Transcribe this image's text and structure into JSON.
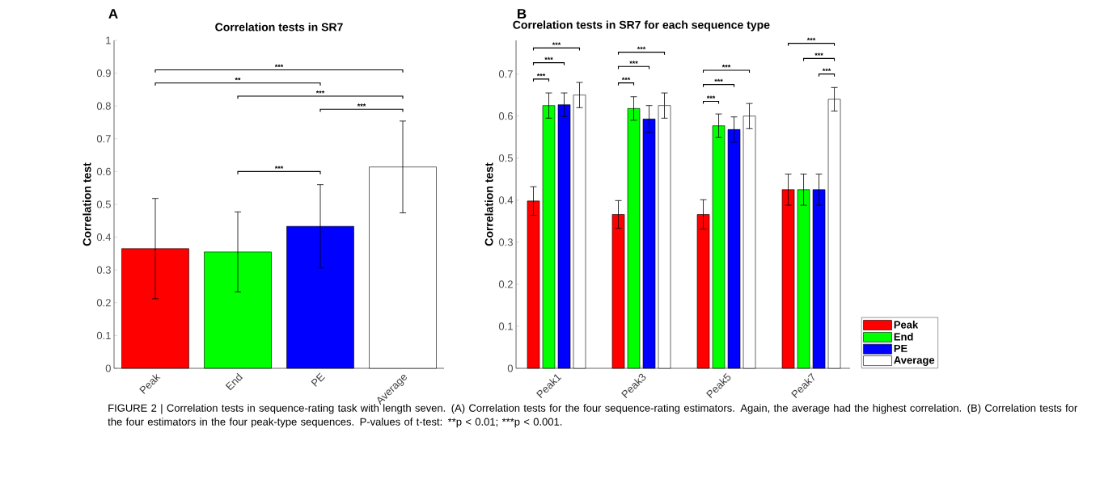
{
  "chart_data": [
    {
      "type": "bar",
      "title": "Correlation tests in SR7",
      "ylabel": "Correlation test",
      "categories": [
        "Peak",
        "End",
        "PE",
        "Average"
      ],
      "values": [
        0.365,
        0.355,
        0.433,
        0.614
      ],
      "errors": [
        0.153,
        0.122,
        0.127,
        0.14
      ],
      "colors": [
        "#ff0000",
        "#00ff00",
        "#0000ff",
        "#ffffff"
      ],
      "ylim": [
        0,
        1
      ],
      "yticks": [
        0,
        0.1,
        0.2,
        0.3,
        0.4,
        0.5,
        0.6,
        0.7,
        0.8,
        0.9,
        1
      ],
      "annotations": [
        "A",
        "***",
        "**",
        "***",
        "***",
        "***",
        "FIGURE 2 | Correlation tests in sequence-rating task with length seven. (A) Correlation tests for the four sequence-rating estimators. Again, the average had the highest correlation. (B) Correlation tests for the four estimators in the four peak-type sequences. P-values of t-test: **p < 0.01;",
        "***p < 0.001."
      ]
    },
    {
      "type": "bar",
      "title": "Correlation tests in SR7 for each sequence type",
      "ylabel": "Correlation test",
      "categories": [
        "Peak1",
        "Peak3",
        "Peak5",
        "Peak7"
      ],
      "series": [
        {
          "name": "Peak",
          "color": "#ff0000",
          "values": [
            0.398,
            0.366,
            0.366,
            0.425
          ],
          "errors": [
            0.034,
            0.033,
            0.035,
            0.037
          ]
        },
        {
          "name": "End",
          "color": "#00ff00",
          "values": [
            0.625,
            0.618,
            0.577,
            0.425
          ],
          "errors": [
            0.03,
            0.028,
            0.028,
            0.037
          ]
        },
        {
          "name": "PE",
          "color": "#0000ff",
          "values": [
            0.627,
            0.593,
            0.568,
            0.425
          ],
          "errors": [
            0.028,
            0.032,
            0.03,
            0.037
          ]
        },
        {
          "name": "Average",
          "color": "#ffffff",
          "values": [
            0.65,
            0.625,
            0.6,
            0.64
          ],
          "errors": [
            0.03,
            0.03,
            0.03,
            0.028
          ]
        }
      ],
      "ylim": [
        0,
        0.78
      ],
      "yticks": [
        0,
        0.1,
        0.2,
        0.3,
        0.4,
        0.5,
        0.6,
        0.7
      ],
      "legend": "bottom right",
      "annotations": [
        "B",
        "***",
        "***",
        "***",
        "***",
        "***",
        "***",
        "***",
        "***",
        "***",
        "***",
        "***",
        "***"
      ]
    }
  ]
}
